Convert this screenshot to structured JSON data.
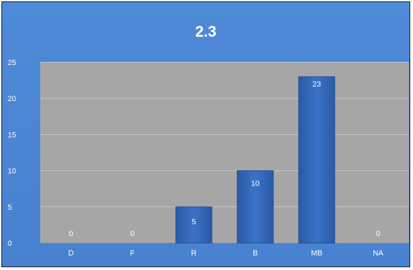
{
  "chart_data": {
    "type": "bar",
    "title": "2.3",
    "categories": [
      "D",
      "F",
      "R",
      "B",
      "MB",
      "NA"
    ],
    "values": [
      0,
      0,
      5,
      10,
      23,
      0
    ],
    "data_labels": [
      "0",
      "0",
      "5",
      "10",
      "23",
      "0"
    ],
    "ylim": [
      0,
      25
    ],
    "yticks": [
      0,
      5,
      10,
      15,
      20,
      25
    ],
    "xlabel": "",
    "ylabel": "",
    "grid": true,
    "legend": "none",
    "colors": {
      "background": "#4a86d4",
      "plot_area": "#a6a6a6",
      "bar": "#2f63b5",
      "gridline": "#c8c8c8",
      "text": "#ffffff"
    }
  }
}
